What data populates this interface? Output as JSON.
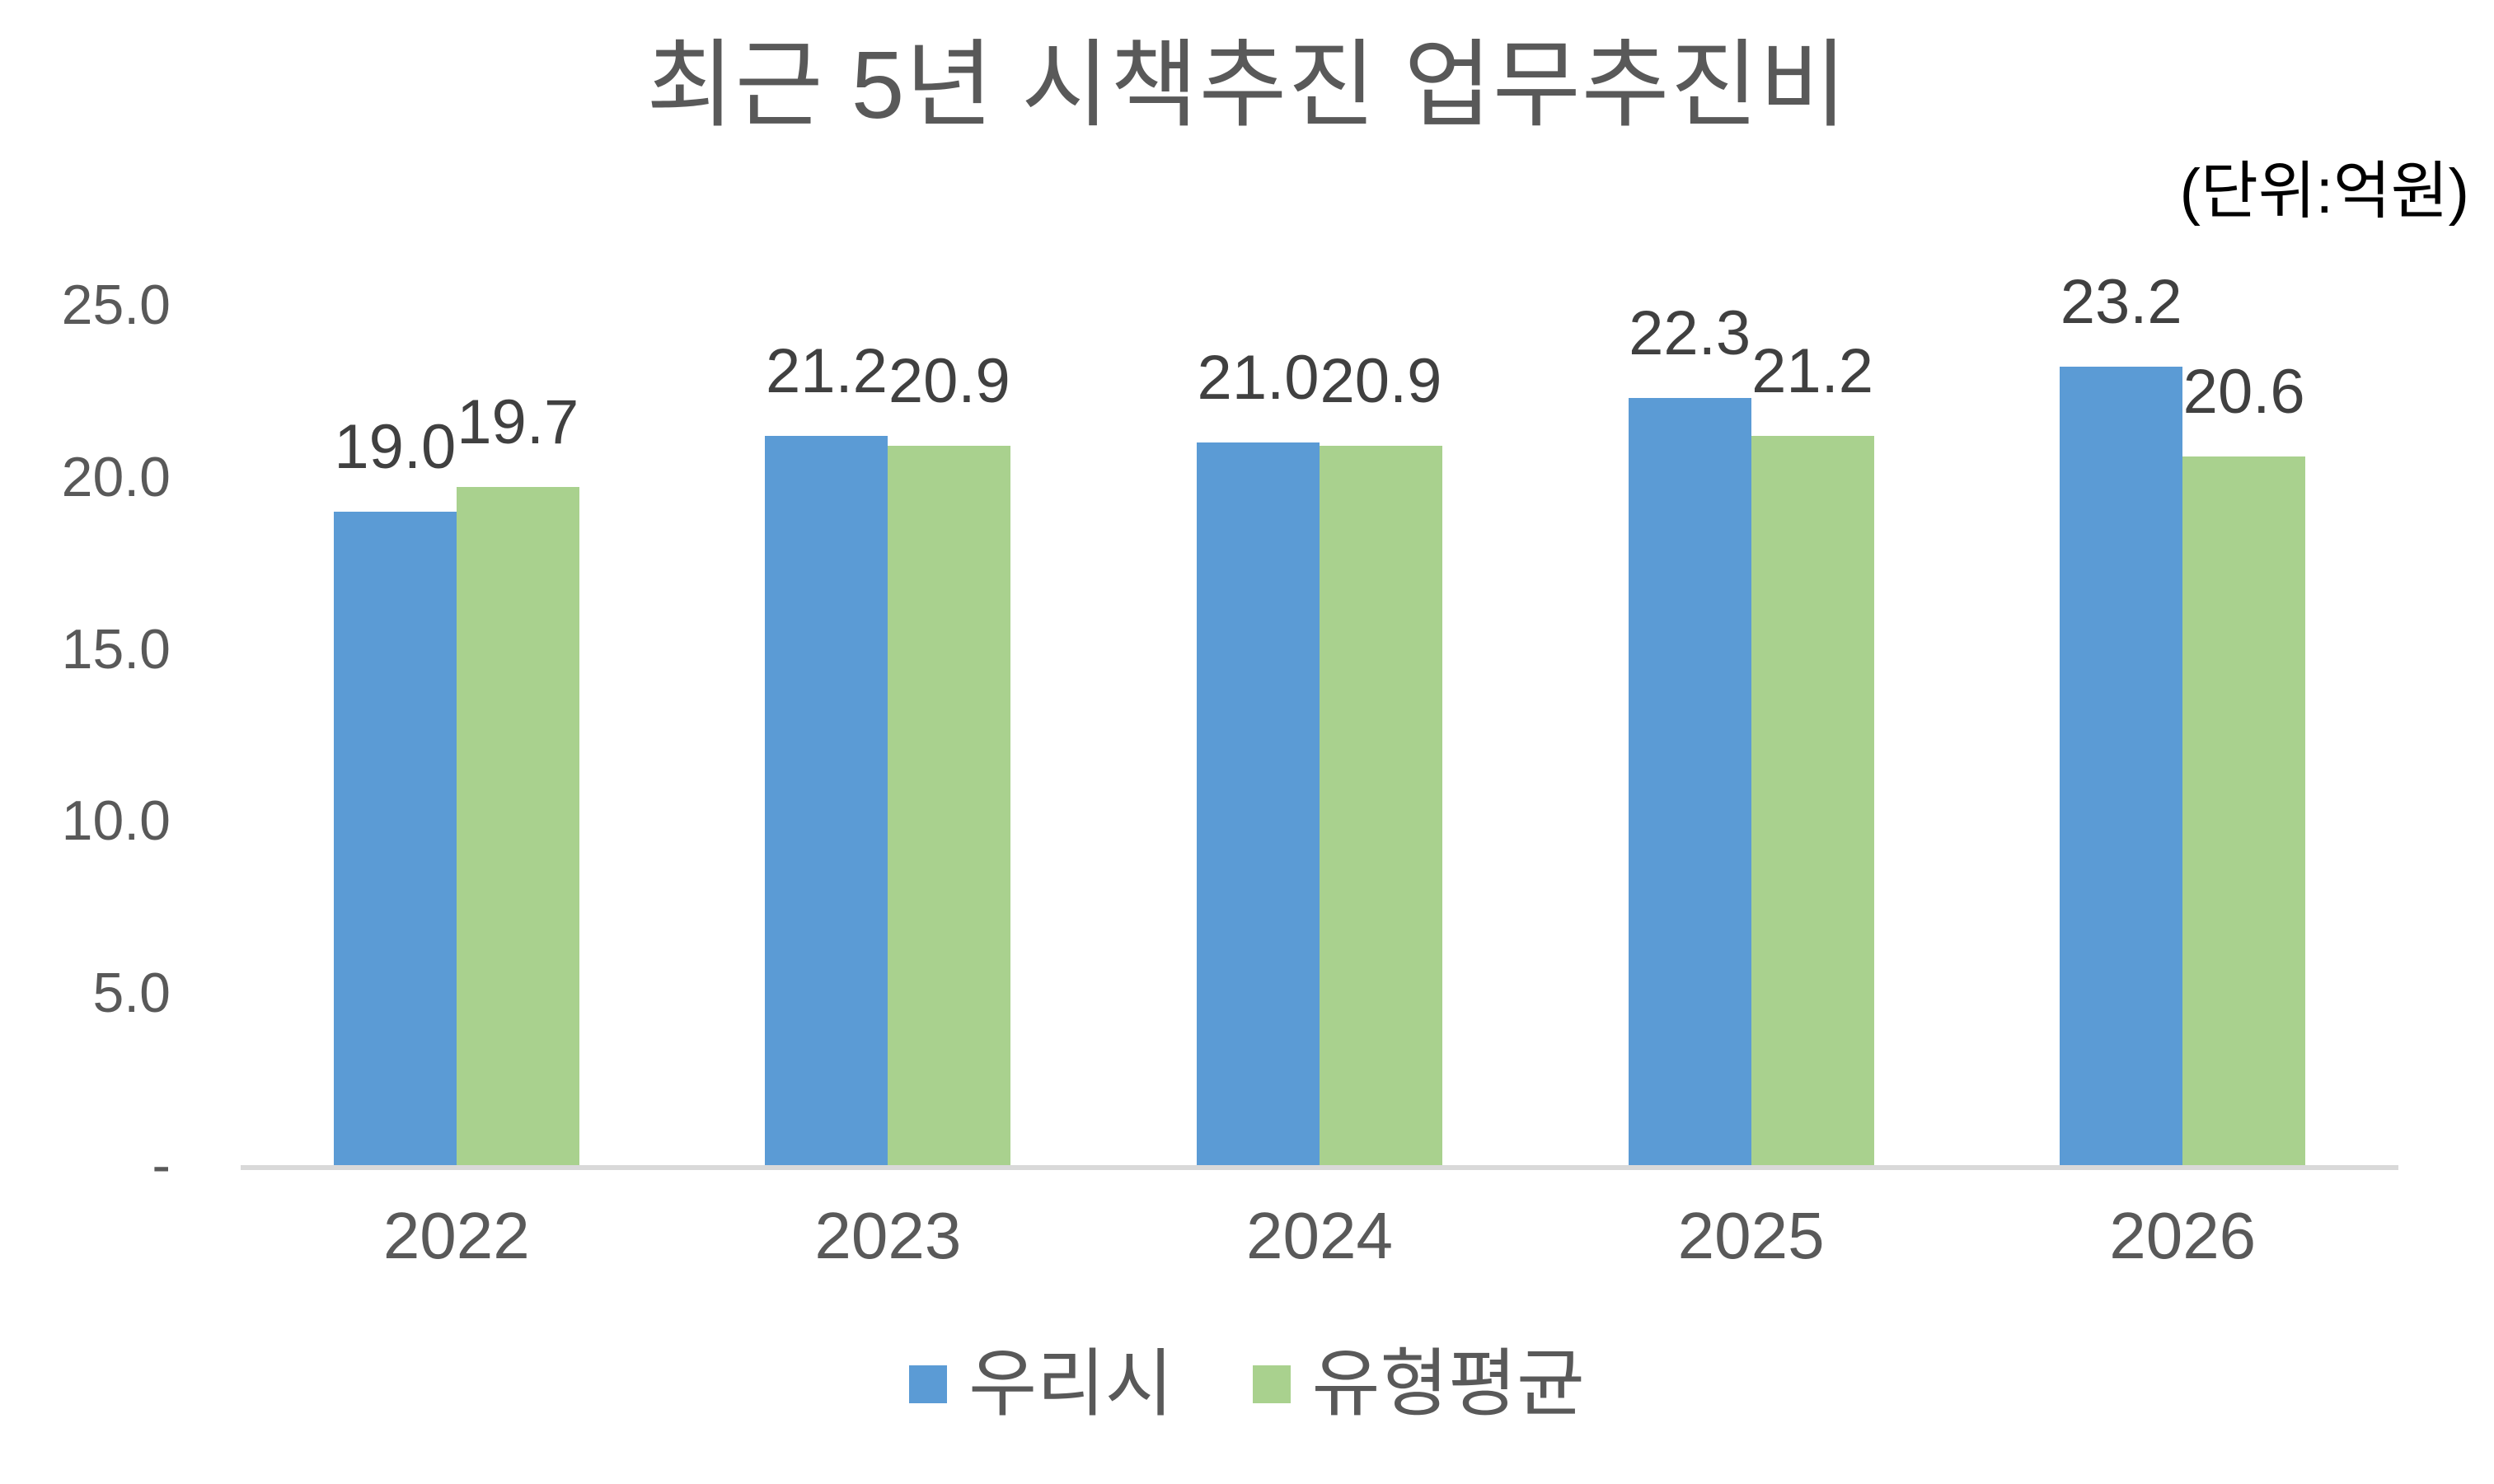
{
  "chart": {
    "title": "최근 5년 시책추진 업무추진비",
    "unit_label": "(단위:억원)",
    "colors": {
      "series1": "#5B9BD5",
      "series2": "#A9D18E",
      "axis_line": "#D9D9D9",
      "title_text": "#595959",
      "axis_text": "#595959",
      "data_label_text": "#404040",
      "unit_text": "#000000",
      "background": "#FFFFFF"
    }
  },
  "chart_data": {
    "type": "bar",
    "title": "최근 5년 시책추진 업무추진비",
    "unit": "(단위:억원)",
    "xlabel": "",
    "ylabel": "",
    "categories": [
      "2022",
      "2023",
      "2024",
      "2025",
      "2026"
    ],
    "series": [
      {
        "name": "우리시",
        "color": "#5B9BD5",
        "values": [
          19.0,
          21.2,
          21.0,
          22.3,
          23.2
        ],
        "labels": [
          "19.0",
          "21.2",
          "21.0",
          "22.3",
          "23.2"
        ]
      },
      {
        "name": "유형평균",
        "color": "#A9D18E",
        "values": [
          19.7,
          20.9,
          20.9,
          21.2,
          20.6
        ],
        "labels": [
          "19.7",
          "20.9",
          "20.9",
          "21.2",
          "20.6"
        ]
      }
    ],
    "ylim": [
      0,
      25
    ],
    "yticks": [
      {
        "label": "25.0",
        "value": 25
      },
      {
        "label": "20.0",
        "value": 20
      },
      {
        "label": "15.0",
        "value": 15
      },
      {
        "label": "10.0",
        "value": 10
      },
      {
        "label": "5.0",
        "value": 5
      },
      {
        "label": "-",
        "value": 0
      }
    ],
    "grid": false,
    "legend_position": "bottom"
  }
}
